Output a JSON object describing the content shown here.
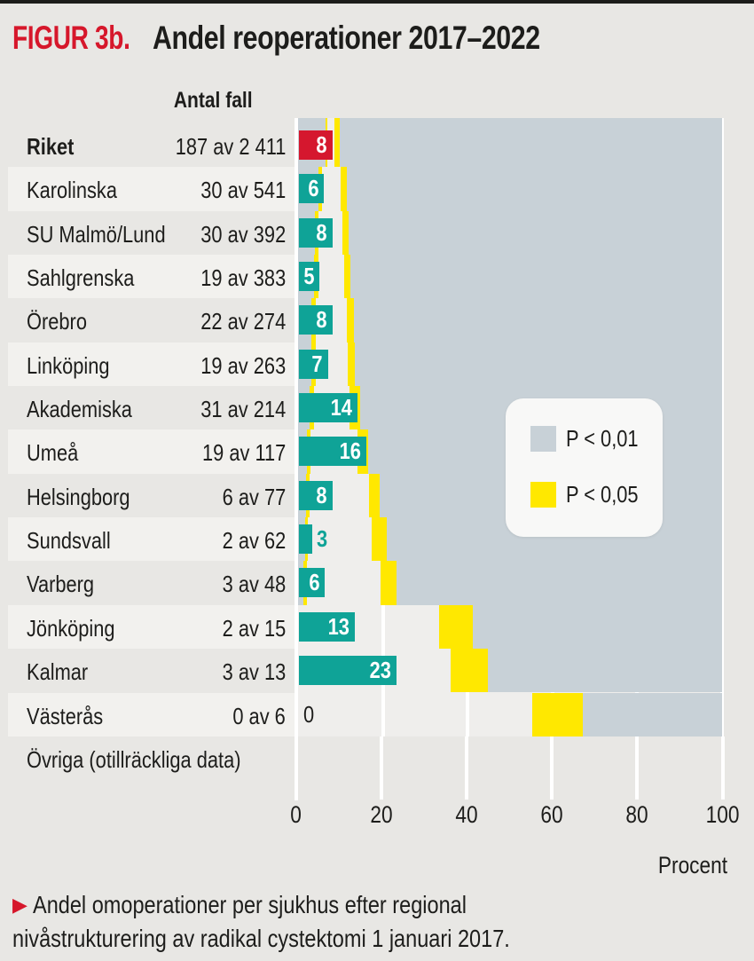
{
  "header": {
    "figure_label": "FIGUR 3b.",
    "title": "Andel reoperationer 2017–2022"
  },
  "column_header": "Antal fall",
  "axis": {
    "ticks": [
      "0",
      "20",
      "40",
      "60",
      "80",
      "100"
    ],
    "label": "Procent"
  },
  "legend": {
    "items": [
      {
        "label": "P < 0,01",
        "color": "#c8d1d7"
      },
      {
        "label": "P < 0,05",
        "color": "#ffe800"
      }
    ]
  },
  "footer_row": "Övriga (otillräckliga data)",
  "caption_lines": [
    "Andel omoperationer per sjukhus efter regional",
    "nivåstrukturering av radikal cystektomi 1 januari 2017."
  ],
  "colors": {
    "background": "#e8e7e4",
    "stripe": "#f2f1ee",
    "funnel_inner": "#efeeec",
    "funnel_gray": "#c8d1d7",
    "funnel_yellow": "#ffe800",
    "bar_teal": "#0fa397",
    "bar_red": "#d5172e",
    "title_red": "#d6172b",
    "text": "#1d1d1b"
  },
  "chart_data": {
    "type": "bar",
    "title": "Andel reoperationer 2017–2022",
    "xlabel": "Procent",
    "xlim": [
      0,
      100
    ],
    "grid": true,
    "legend_position": "right-middle",
    "note": "Funnel plot: per-row significance bands; gray = P < 0,01, yellow = P < 0,05, inner light region = not significant",
    "rows": [
      {
        "name": "Riket",
        "cases": "187 av 2 411",
        "value": 8,
        "bar_pct": 8,
        "bar_color": "red",
        "label_style": "inside",
        "bands": {
          "gray_low_end": 6.4,
          "yellow_low_end": 7.0,
          "white_end": 8.6,
          "yellow_high_end": 9.9
        }
      },
      {
        "name": "Karolinska",
        "cases": "30 av 541",
        "value": 6,
        "bar_pct": 6,
        "bar_color": "teal",
        "label_style": "inside",
        "bands": {
          "gray_low_end": 4.8,
          "yellow_low_end": 5.6,
          "white_end": 10.0,
          "yellow_high_end": 11.6
        }
      },
      {
        "name": "SU Malmö/Lund",
        "cases": "30 av 392",
        "value": 8,
        "bar_pct": 8,
        "bar_color": "teal",
        "label_style": "inside",
        "bands": {
          "gray_low_end": 4.0,
          "yellow_low_end": 4.9,
          "white_end": 10.4,
          "yellow_high_end": 12.0
        }
      },
      {
        "name": "Sahlgrenska",
        "cases": "19 av 383",
        "value": 5,
        "bar_pct": 5,
        "bar_color": "teal",
        "label_style": "inside",
        "bands": {
          "gray_low_end": 3.8,
          "yellow_low_end": 4.8,
          "white_end": 10.8,
          "yellow_high_end": 12.3
        }
      },
      {
        "name": "Örebro",
        "cases": "22 av 274",
        "value": 8,
        "bar_pct": 8,
        "bar_color": "teal",
        "label_style": "inside",
        "bands": {
          "gray_low_end": 3.1,
          "yellow_low_end": 4.2,
          "white_end": 11.5,
          "yellow_high_end": 13.1
        }
      },
      {
        "name": "Linköping",
        "cases": "19 av 263",
        "value": 7,
        "bar_pct": 7,
        "bar_color": "teal",
        "label_style": "inside",
        "bands": {
          "gray_low_end": 3.1,
          "yellow_low_end": 4.1,
          "white_end": 11.7,
          "yellow_high_end": 13.4
        }
      },
      {
        "name": "Akademiska",
        "cases": "31 av 214",
        "value": 14,
        "bar_pct": 14,
        "bar_color": "teal",
        "label_style": "inside",
        "bands": {
          "gray_low_end": 2.7,
          "yellow_low_end": 3.8,
          "white_end": 12.2,
          "yellow_high_end": 14.6
        }
      },
      {
        "name": "Umeå",
        "cases": "19 av 117",
        "value": 16,
        "bar_pct": 16,
        "bar_color": "teal",
        "label_style": "inside",
        "bands": {
          "gray_low_end": 2.0,
          "yellow_low_end": 3.0,
          "white_end": 14.0,
          "yellow_high_end": 16.5
        }
      },
      {
        "name": "Helsingborg",
        "cases": "6 av 77",
        "value": 8,
        "bar_pct": 8,
        "bar_color": "teal",
        "label_style": "inside",
        "bands": {
          "gray_low_end": 1.9,
          "yellow_low_end": 2.7,
          "white_end": 16.7,
          "yellow_high_end": 19.2
        }
      },
      {
        "name": "Sundsvall",
        "cases": "2 av 62",
        "value": 3,
        "bar_pct": 3.2,
        "bar_color": "teal",
        "label_style": "outside-teal",
        "bands": {
          "gray_low_end": 1.6,
          "yellow_low_end": 2.4,
          "white_end": 17.4,
          "yellow_high_end": 21.0
        }
      },
      {
        "name": "Varberg",
        "cases": "3 av 48",
        "value": 6,
        "bar_pct": 6.2,
        "bar_color": "teal",
        "label_style": "inside",
        "bands": {
          "gray_low_end": 1.3,
          "yellow_low_end": 2.1,
          "white_end": 19.4,
          "yellow_high_end": 23.3
        }
      },
      {
        "name": "Jönköping",
        "cases": "2 av 15",
        "value": 13,
        "bar_pct": 13.3,
        "bar_color": "teal",
        "label_style": "inside",
        "bands": {
          "gray_low_end": 0,
          "yellow_low_end": 0,
          "white_end": 33.3,
          "yellow_high_end": 41.3
        }
      },
      {
        "name": "Kalmar",
        "cases": "3 av 13",
        "value": 23,
        "bar_pct": 23.1,
        "bar_color": "teal",
        "label_style": "inside",
        "bands": {
          "gray_low_end": 0,
          "yellow_low_end": 0,
          "white_end": 36.0,
          "yellow_high_end": 44.8
        }
      },
      {
        "name": "Västerås",
        "cases": "0 av 6",
        "value": 0,
        "bar_pct": 0,
        "bar_color": "teal",
        "label_style": "outside-black",
        "bands": {
          "gray_low_end": 0,
          "yellow_low_end": 0,
          "white_end": 55.2,
          "yellow_high_end": 67.1
        }
      }
    ]
  }
}
